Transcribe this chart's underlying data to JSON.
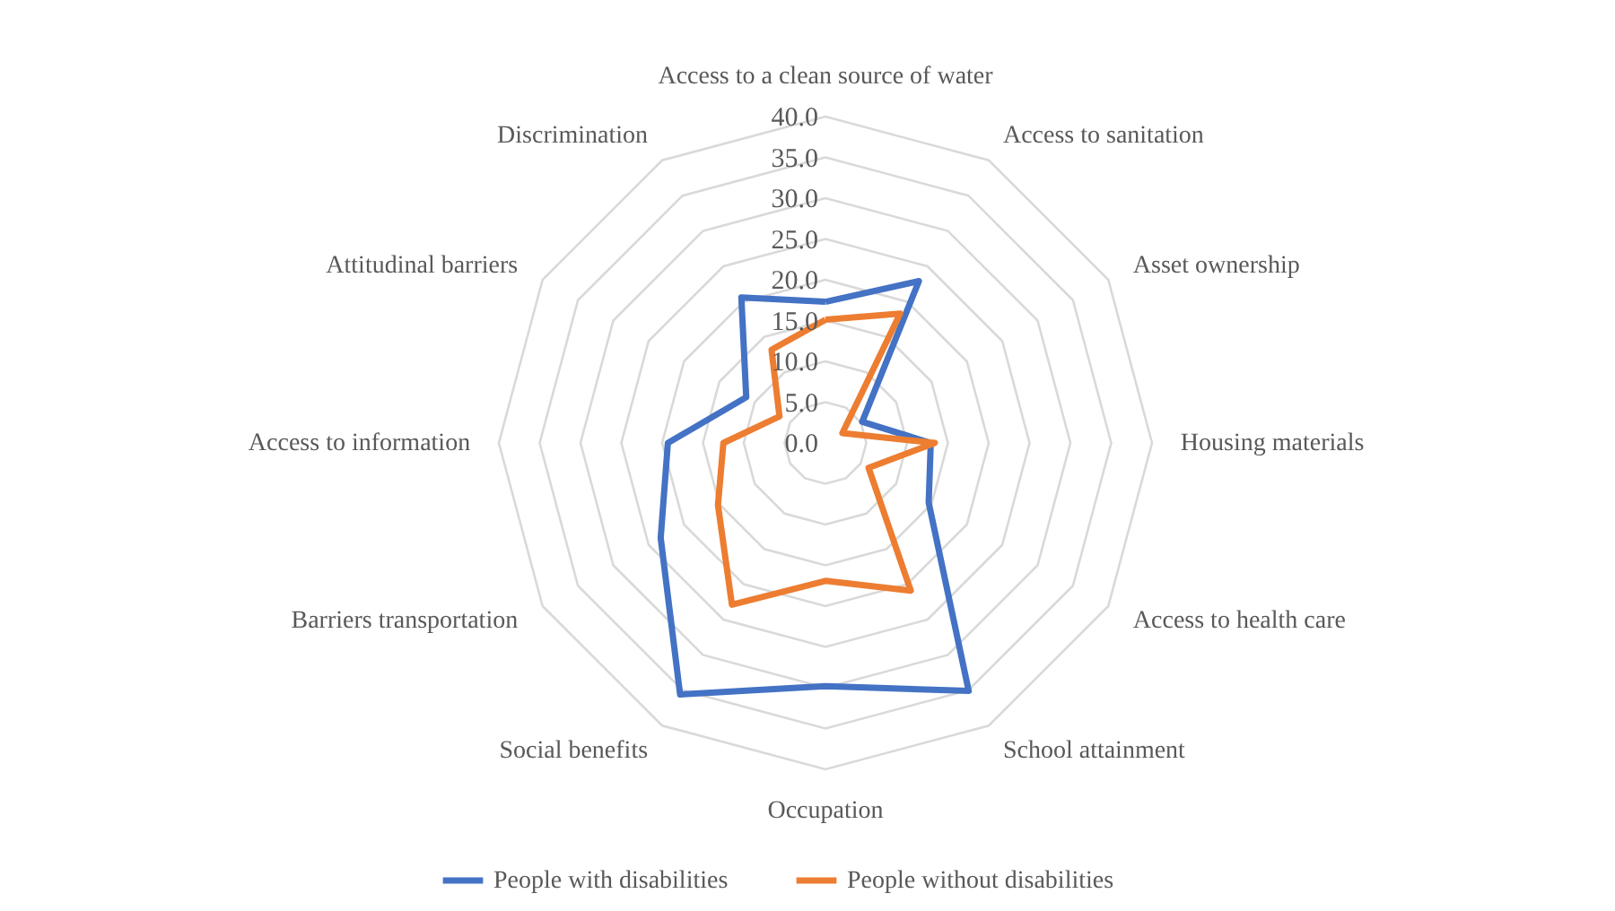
{
  "chart_data": {
    "type": "radar",
    "categories": [
      "Access to a clean source of water",
      "Access to sanitation",
      "Asset ownership",
      "Housing materials",
      "Access to health care",
      "School attainment",
      "Occupation",
      "Social benefits",
      "Barriers transportation",
      "Access to information",
      "Attitudinal barriers",
      "Discrimination"
    ],
    "series": [
      {
        "name": "People with disabilities",
        "color": "#4472c4",
        "values": [
          17.3,
          22.9,
          5.2,
          12.9,
          14.6,
          35.1,
          29.8,
          35.6,
          23.3,
          19.3,
          11.2,
          20.6
        ]
      },
      {
        "name": "People without disabilities",
        "color": "#ed7d31",
        "values": [
          15.1,
          18.3,
          2.4,
          13.4,
          6.1,
          20.9,
          16.9,
          22.9,
          15.2,
          12.5,
          6.5,
          13.2
        ]
      }
    ],
    "ylim": [
      0,
      40
    ],
    "yticks": [
      {
        "value": 0,
        "label": "0.0"
      },
      {
        "value": 5,
        "label": "5.0"
      },
      {
        "value": 10,
        "label": "10.0"
      },
      {
        "value": 15,
        "label": "15.0"
      },
      {
        "value": 20,
        "label": "20.0"
      },
      {
        "value": 25,
        "label": "25.0"
      },
      {
        "value": 30,
        "label": "30.0"
      },
      {
        "value": 35,
        "label": "35.0"
      },
      {
        "value": 40,
        "label": "40.0"
      }
    ],
    "grid": true,
    "legend": "bottom",
    "marker": "none",
    "line_style": "solid"
  }
}
